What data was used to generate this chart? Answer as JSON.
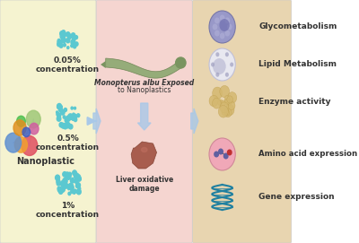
{
  "panel1_bg": "#f5f3d0",
  "panel2_bg": "#f5d5d0",
  "panel3_bg": "#e8d5b0",
  "border_color": "#cccccc",
  "left_labels": [
    "0.05%\nconcentration",
    "0.5%\nconcentration",
    "1%\nconcentration"
  ],
  "left_nano_label": "Nanoplastic",
  "center_top_text_italic": "Monopterus albu",
  "center_top_text_normal": " Exposed\nto Nanoplastics",
  "center_bottom_text": "Liver oxidative\ndamage",
  "right_labels": [
    "Glycometabolism",
    "Lipid Metabolism",
    "Enzyme activity",
    "Amino acid expression",
    "Gene expression"
  ],
  "arrow_color": "#a8c8e8",
  "dot_color_small": "#5bc8d0",
  "dot_color_medium": "#3aabba",
  "nanoplastic_colors": [
    "#e05060",
    "#a0c878",
    "#f0a030",
    "#6090d0",
    "#d060a0",
    "#50c050",
    "#e09020",
    "#4060c0"
  ],
  "cell_color_glyco": "#9090c8",
  "cell_color_lipid": "#c8c8d8",
  "enzyme_color": "#d4b870",
  "amino_bg": "#f0a0b0",
  "gene_color": "#2080a0",
  "liver_color": "#a05040",
  "text_color": "#333333",
  "font_size_label": 6.5,
  "font_size_nano": 7.0
}
